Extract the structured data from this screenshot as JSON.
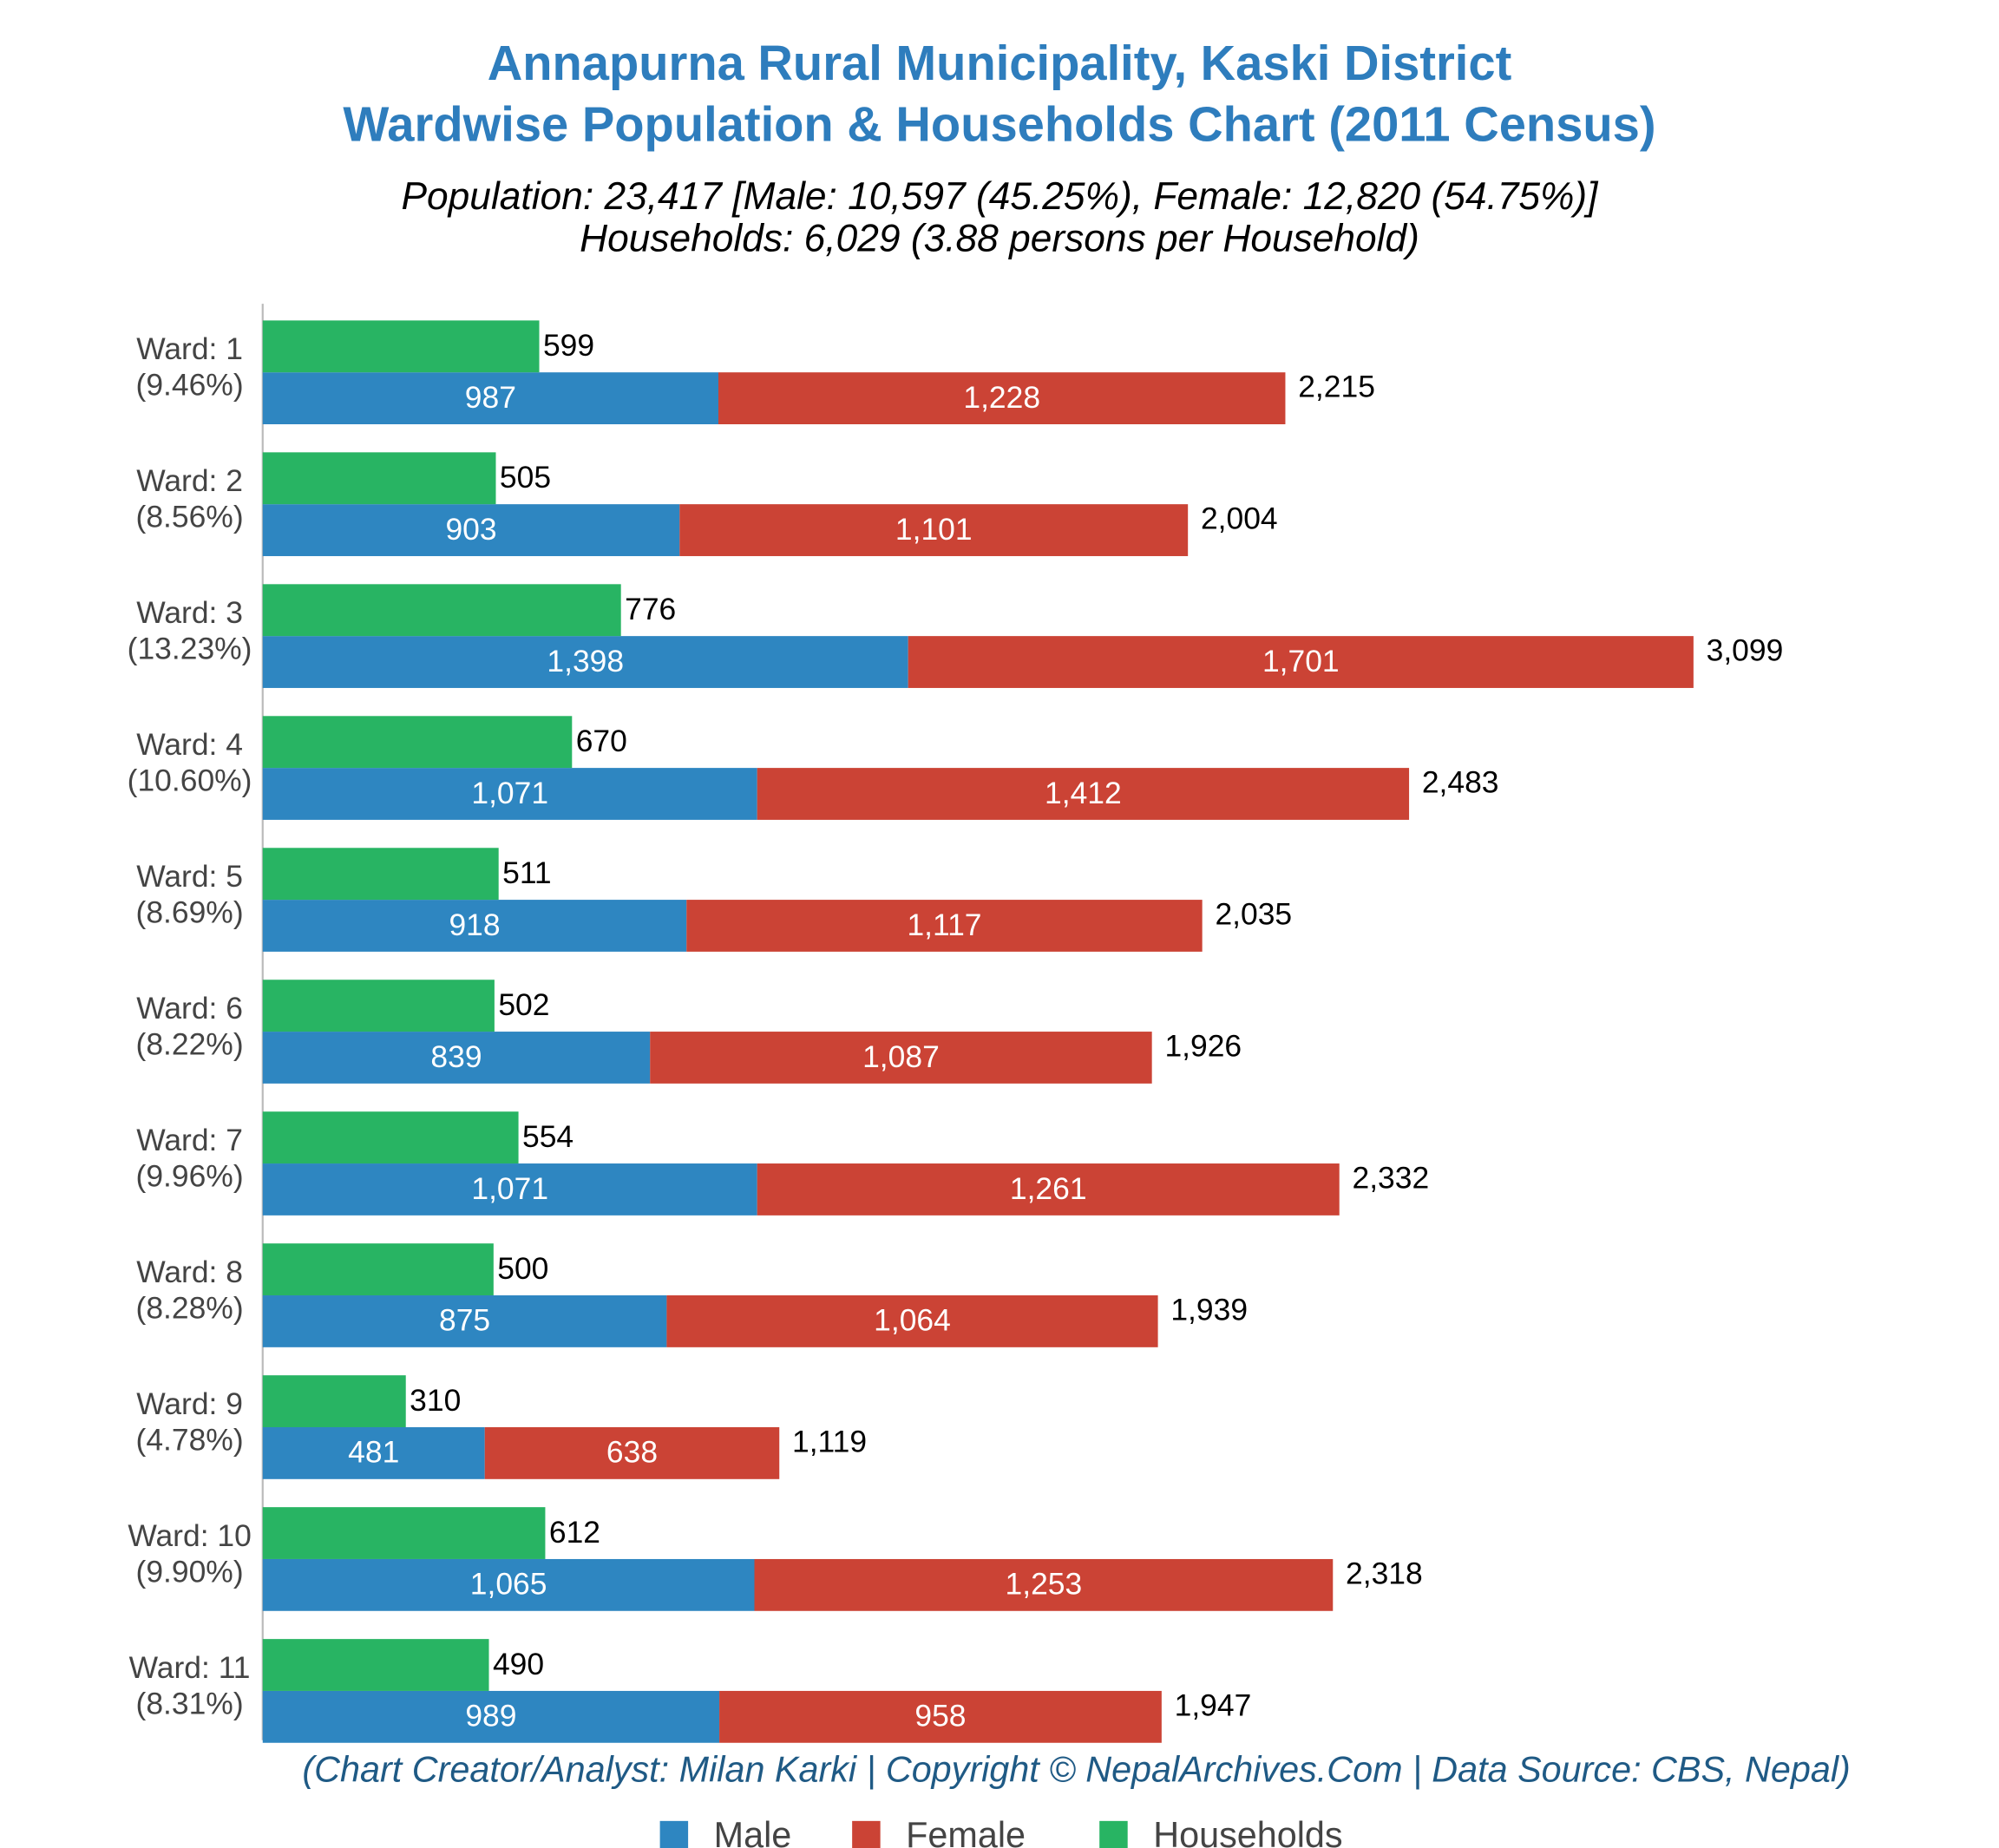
{
  "chart_data": {
    "type": "bar",
    "orientation": "horizontal",
    "title": [
      "Annapurna Rural Municipality, Kaski District",
      "Wardwise Population & Households Chart (2011 Census)"
    ],
    "subtitle": [
      "Population: 23,417 [Male: 10,597 (45.25%), Female: 12,820 (54.75%)]",
      "Households: 6,029 (3.88 persons per Household)"
    ],
    "source": "(Chart Creator/Analyst: Milan Karki | Copyright © NepalArchives.Com | Data Source: CBS, Nepal)",
    "categories": [
      "Ward: 1",
      "Ward: 2",
      "Ward: 3",
      "Ward: 4",
      "Ward: 5",
      "Ward: 6",
      "Ward: 7",
      "Ward: 8",
      "Ward: 9",
      "Ward: 10",
      "Ward: 11"
    ],
    "category_notes": [
      "(9.46%)",
      "(8.56%)",
      "(13.23%)",
      "(10.60%)",
      "(8.69%)",
      "(8.22%)",
      "(9.96%)",
      "(8.28%)",
      "(4.78%)",
      "(9.90%)",
      "(8.31%)"
    ],
    "series": [
      {
        "name": "Male",
        "color": "#2e86c1",
        "stacked": true,
        "values": [
          987,
          903,
          1398,
          1071,
          918,
          839,
          1071,
          875,
          481,
          1065,
          989
        ],
        "value_labels": [
          "987",
          "903",
          "1,398",
          "1,071",
          "918",
          "839",
          "1,071",
          "875",
          "481",
          "1,065",
          "989"
        ]
      },
      {
        "name": "Female",
        "color": "#cb4335",
        "stacked": true,
        "values": [
          1228,
          1101,
          1701,
          1412,
          1117,
          1087,
          1261,
          1064,
          638,
          1253,
          958
        ],
        "value_labels": [
          "1,228",
          "1,101",
          "1,701",
          "1,412",
          "1,117",
          "1,087",
          "1,261",
          "1,064",
          "638",
          "1,253",
          "958"
        ]
      },
      {
        "name": "Households",
        "color": "#28b463",
        "stacked": false,
        "values": [
          599,
          505,
          776,
          670,
          511,
          502,
          554,
          500,
          310,
          612,
          490
        ],
        "value_labels": [
          "599",
          "505",
          "776",
          "670",
          "511",
          "502",
          "554",
          "500",
          "310",
          "612",
          "490"
        ]
      }
    ],
    "totals": [
      2215,
      2004,
      3099,
      2483,
      2035,
      1926,
      2332,
      1939,
      1119,
      2318,
      1947
    ],
    "total_labels": [
      "2,215",
      "2,004",
      "3,099",
      "2,483",
      "2,035",
      "1,926",
      "2,332",
      "1,939",
      "1,119",
      "2,318",
      "1,947"
    ],
    "xlim": [
      0,
      3300
    ],
    "legend": "bottom"
  }
}
